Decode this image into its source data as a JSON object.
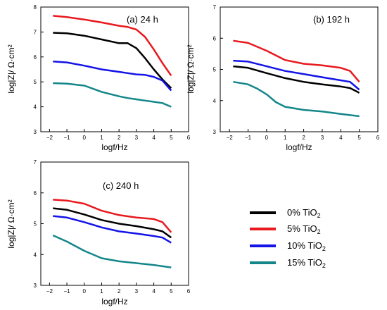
{
  "legend": [
    {
      "label": "0% TiO",
      "sub": "2",
      "color": "#000000"
    },
    {
      "label": "5% TiO",
      "sub": "2",
      "color": "#e8191f"
    },
    {
      "label": "10% TiO",
      "sub": "2",
      "color": "#1414e6"
    },
    {
      "label": "15% TiO",
      "sub": "2",
      "color": "#14868a"
    }
  ],
  "chart_data": [
    {
      "type": "line",
      "panel_label": "(a) 24 h",
      "xlabel": "logf/Hz",
      "ylabel": "log|Z|/ Ω·cm²",
      "xlim": [
        -2.5,
        6
      ],
      "ylim": [
        3,
        8
      ],
      "xticks": [
        -2,
        -1,
        0,
        1,
        2,
        3,
        4,
        5,
        6
      ],
      "yticks": [
        3,
        4,
        5,
        6,
        7,
        8
      ],
      "series": [
        {
          "name": "0% TiO2",
          "color": "#000000",
          "x": [
            -1.8,
            -1,
            0,
            1,
            2,
            2.5,
            3,
            3.5,
            4,
            4.5,
            5
          ],
          "y": [
            6.97,
            6.95,
            6.85,
            6.7,
            6.55,
            6.55,
            6.35,
            5.95,
            5.5,
            5.1,
            4.75
          ]
        },
        {
          "name": "5% TiO2",
          "color": "#e8191f",
          "x": [
            -1.8,
            -1,
            0,
            1,
            2,
            2.5,
            3,
            3.5,
            4,
            4.5,
            5
          ],
          "y": [
            7.65,
            7.6,
            7.5,
            7.38,
            7.25,
            7.2,
            7.1,
            6.8,
            6.3,
            5.75,
            5.25
          ]
        },
        {
          "name": "10% TiO2",
          "color": "#1414e6",
          "x": [
            -1.8,
            -1,
            0,
            1,
            2,
            2.5,
            3,
            3.5,
            4,
            4.5,
            5
          ],
          "y": [
            5.82,
            5.78,
            5.65,
            5.5,
            5.4,
            5.35,
            5.3,
            5.28,
            5.2,
            5.05,
            4.65
          ]
        },
        {
          "name": "15% TiO2",
          "color": "#14868a",
          "x": [
            -1.8,
            -1,
            0,
            1,
            2,
            2.5,
            3,
            3.5,
            4,
            4.5,
            5
          ],
          "y": [
            4.95,
            4.93,
            4.85,
            4.6,
            4.42,
            4.35,
            4.3,
            4.25,
            4.2,
            4.15,
            4.0
          ]
        }
      ]
    },
    {
      "type": "line",
      "panel_label": "(b) 192 h",
      "xlabel": "logf/Hz",
      "ylabel": "log|Z|/ Ω·cm²",
      "xlim": [
        -2.5,
        6
      ],
      "ylim": [
        3,
        7
      ],
      "xticks": [
        -2,
        -1,
        0,
        1,
        2,
        3,
        4,
        5,
        6
      ],
      "yticks": [
        3,
        4,
        5,
        6,
        7
      ],
      "series": [
        {
          "name": "0% TiO2",
          "color": "#000000",
          "x": [
            -1.8,
            -1,
            0,
            1,
            2,
            3,
            4,
            4.5,
            5
          ],
          "y": [
            5.1,
            5.05,
            4.88,
            4.72,
            4.6,
            4.52,
            4.45,
            4.4,
            4.25
          ]
        },
        {
          "name": "5% TiO2",
          "color": "#e8191f",
          "x": [
            -1.8,
            -1,
            0,
            1,
            2,
            3,
            4,
            4.5,
            5
          ],
          "y": [
            5.92,
            5.85,
            5.6,
            5.3,
            5.18,
            5.13,
            5.05,
            4.95,
            4.6
          ]
        },
        {
          "name": "10% TiO2",
          "color": "#1414e6",
          "x": [
            -1.8,
            -1,
            0,
            1,
            2,
            3,
            4,
            4.5,
            5
          ],
          "y": [
            5.28,
            5.25,
            5.1,
            4.95,
            4.85,
            4.75,
            4.65,
            4.6,
            4.35
          ]
        },
        {
          "name": "15% TiO2",
          "color": "#14868a",
          "x": [
            -1.8,
            -1,
            -0.5,
            0,
            0.5,
            1,
            2,
            3,
            4,
            5
          ],
          "y": [
            4.6,
            4.52,
            4.38,
            4.2,
            3.95,
            3.8,
            3.7,
            3.65,
            3.57,
            3.5
          ]
        }
      ]
    },
    {
      "type": "line",
      "panel_label": "(c) 240 h",
      "xlabel": "logf/Hz",
      "ylabel": "log|Z|/ Ω·cm²",
      "xlim": [
        -2.5,
        6
      ],
      "ylim": [
        3,
        7
      ],
      "xticks": [
        -2,
        -1,
        0,
        1,
        2,
        3,
        4,
        5,
        6
      ],
      "yticks": [
        3,
        4,
        5,
        6,
        7
      ],
      "series": [
        {
          "name": "0% TiO2",
          "color": "#000000",
          "x": [
            -1.8,
            -1,
            0,
            1,
            2,
            3,
            4,
            4.5,
            5
          ],
          "y": [
            5.5,
            5.45,
            5.3,
            5.12,
            5.0,
            4.92,
            4.82,
            4.75,
            4.55
          ]
        },
        {
          "name": "5% TiO2",
          "color": "#e8191f",
          "x": [
            -1.8,
            -1,
            0,
            1,
            2,
            3,
            4,
            4.5,
            5
          ],
          "y": [
            5.78,
            5.75,
            5.65,
            5.42,
            5.28,
            5.2,
            5.15,
            5.05,
            4.72
          ]
        },
        {
          "name": "10% TiO2",
          "color": "#1414e6",
          "x": [
            -1.8,
            -1,
            0,
            1,
            2,
            3,
            4,
            4.5,
            5
          ],
          "y": [
            5.25,
            5.2,
            5.05,
            4.88,
            4.75,
            4.68,
            4.6,
            4.55,
            4.38
          ]
        },
        {
          "name": "15% TiO2",
          "color": "#14868a",
          "x": [
            -1.8,
            -1,
            0,
            1,
            2,
            3,
            4,
            5
          ],
          "y": [
            4.62,
            4.42,
            4.12,
            3.88,
            3.78,
            3.72,
            3.66,
            3.58
          ]
        }
      ]
    }
  ]
}
